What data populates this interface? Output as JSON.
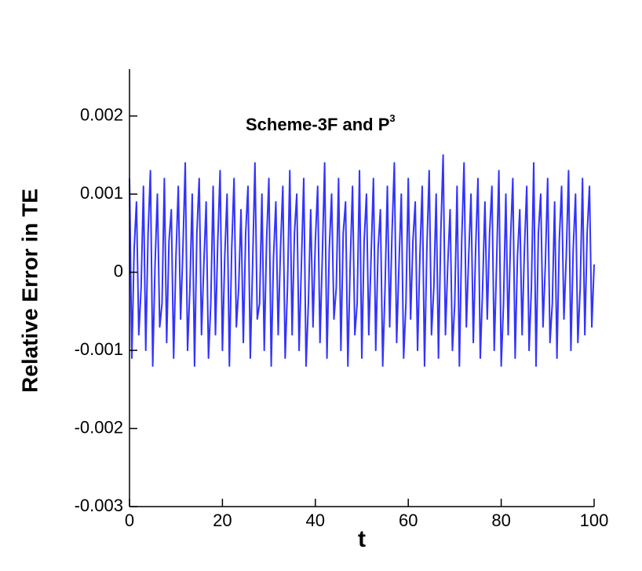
{
  "chart_data": {
    "type": "line",
    "x_label": "t",
    "y_label": "Relative Error in TE",
    "annotation": {
      "text": "Scheme-3F and P",
      "superscript": "3",
      "color": "#3333ff"
    },
    "xlim": [
      0,
      100
    ],
    "xticks": [
      0,
      20,
      40,
      60,
      80,
      100
    ],
    "ylim": [
      -0.003,
      0.0026
    ],
    "yticks": [
      -0.003,
      -0.002,
      -0.001,
      0,
      0.001,
      0.002
    ],
    "grid": false,
    "series": [
      {
        "color": "#3333ff",
        "x": [
          0,
          0.5,
          1,
          1.5,
          2,
          2.5,
          3,
          3.5,
          4,
          4.5,
          5,
          5.5,
          6,
          6.5,
          7,
          7.5,
          8,
          8.5,
          9,
          9.5,
          10,
          10.5,
          11,
          11.5,
          12,
          12.5,
          13,
          13.5,
          14,
          14.5,
          15,
          15.5,
          16,
          16.5,
          17,
          17.5,
          18,
          18.5,
          19,
          19.5,
          20,
          20.5,
          21,
          21.5,
          22,
          22.5,
          23,
          23.5,
          24,
          24.5,
          25,
          25.5,
          26,
          26.5,
          27,
          27.5,
          28,
          28.5,
          29,
          29.5,
          30,
          30.5,
          31,
          31.5,
          32,
          32.5,
          33,
          33.5,
          34,
          34.5,
          35,
          35.5,
          36,
          36.5,
          37,
          37.5,
          38,
          38.5,
          39,
          39.5,
          40,
          40.5,
          41,
          41.5,
          42,
          42.5,
          43,
          43.5,
          44,
          44.5,
          45,
          45.5,
          46,
          46.5,
          47,
          47.5,
          48,
          48.5,
          49,
          49.5,
          50,
          50.5,
          51,
          51.5,
          52,
          52.5,
          53,
          53.5,
          54,
          54.5,
          55,
          55.5,
          56,
          56.5,
          57,
          57.5,
          58,
          58.5,
          59,
          59.5,
          60,
          60.5,
          61,
          61.5,
          62,
          62.5,
          63,
          63.5,
          64,
          64.5,
          65,
          65.5,
          66,
          66.5,
          67,
          67.5,
          68,
          68.5,
          69,
          69.5,
          70,
          70.5,
          71,
          71.5,
          72,
          72.5,
          73,
          73.5,
          74,
          74.5,
          75,
          75.5,
          76,
          76.5,
          77,
          77.5,
          78,
          78.5,
          79,
          79.5,
          80,
          80.5,
          81,
          81.5,
          82,
          82.5,
          83,
          83.5,
          84,
          84.5,
          85,
          85.5,
          86,
          86.5,
          87,
          87.5,
          88,
          88.5,
          89,
          89.5,
          90,
          90.5,
          91,
          91.5,
          92,
          92.5,
          93,
          93.5,
          94,
          94.5,
          95,
          95.5,
          96,
          96.5,
          97,
          97.5,
          98,
          98.5,
          99,
          99.5,
          100
        ],
        "values": [
          0.0012,
          -0.0011,
          0.0003,
          0.0009,
          -0.0008,
          -0.0002,
          0.0011,
          -0.001,
          0.0005,
          0.0013,
          -0.0012,
          0.0001,
          0.001,
          -0.0007,
          -0.0004,
          0.0012,
          -0.0009,
          0.0004,
          0.0008,
          -0.0011,
          0.0002,
          0.0011,
          -0.0006,
          0.0003,
          0.0014,
          -0.001,
          -0.0002,
          0.001,
          -0.0012,
          0.0005,
          0.0012,
          -0.0008,
          0.0001,
          0.0009,
          -0.0011,
          -0.0004,
          0.0011,
          -0.0008,
          0.0004,
          0.0013,
          -0.001,
          0.0002,
          0.001,
          -0.0012,
          0.0003,
          0.0012,
          -0.0007,
          -0.0002,
          0.0008,
          -0.0009,
          0.0005,
          0.0011,
          -0.0011,
          0.0001,
          0.0014,
          -0.0006,
          -0.0004,
          0.001,
          -0.001,
          0.0004,
          0.0012,
          -0.0012,
          0.0002,
          0.0009,
          -0.0008,
          0.0003,
          0.0011,
          -0.0011,
          -0.0002,
          0.0013,
          -0.0008,
          0.0005,
          0.001,
          -0.001,
          0.0001,
          0.0012,
          -0.0012,
          -0.0004,
          0.0008,
          -0.0007,
          0.0004,
          0.0011,
          -0.0009,
          0.0002,
          0.0014,
          -0.0011,
          0.0003,
          0.001,
          -0.0006,
          -0.0002,
          0.0012,
          -0.001,
          0.0005,
          0.0009,
          -0.0012,
          0.0001,
          0.0011,
          -0.0008,
          -0.0004,
          0.0013,
          -0.0011,
          0.0004,
          0.001,
          -0.0008,
          0.0002,
          0.0012,
          -0.001,
          0.0003,
          0.0008,
          -0.0012,
          -0.0002,
          0.0011,
          -0.0007,
          0.0005,
          0.0014,
          -0.0009,
          0.0001,
          0.001,
          -0.0011,
          -0.0004,
          0.0012,
          -0.0006,
          0.0004,
          0.0009,
          -0.001,
          0.0002,
          0.0011,
          -0.0012,
          0.0003,
          0.0013,
          -0.0008,
          -0.0002,
          0.001,
          -0.0011,
          0.0005,
          0.0015,
          -0.0008,
          0.0001,
          0.0008,
          -0.001,
          -0.0004,
          0.0011,
          -0.0012,
          0.0004,
          0.0014,
          -0.0007,
          0.0002,
          0.001,
          -0.0009,
          0.0003,
          0.0012,
          -0.0011,
          -0.0002,
          0.0009,
          -0.0006,
          0.0005,
          0.0011,
          -0.001,
          0.0001,
          0.0013,
          -0.0012,
          -0.0004,
          0.001,
          -0.0008,
          0.0004,
          0.0012,
          -0.0011,
          0.0002,
          0.0008,
          -0.0008,
          0.0003,
          0.0011,
          -0.001,
          -0.0002,
          0.0014,
          -0.0012,
          0.0005,
          0.001,
          -0.0007,
          0.0001,
          0.0012,
          -0.0009,
          -0.0004,
          0.0009,
          -0.0011,
          0.0004,
          0.0011,
          -0.0006,
          0.0002,
          0.0013,
          -0.001,
          0.0003,
          0.001,
          -0.0009,
          -0.0002,
          0.0012,
          -0.0008,
          0.0005,
          0.0011,
          -0.0007,
          0.0001
        ]
      }
    ]
  }
}
